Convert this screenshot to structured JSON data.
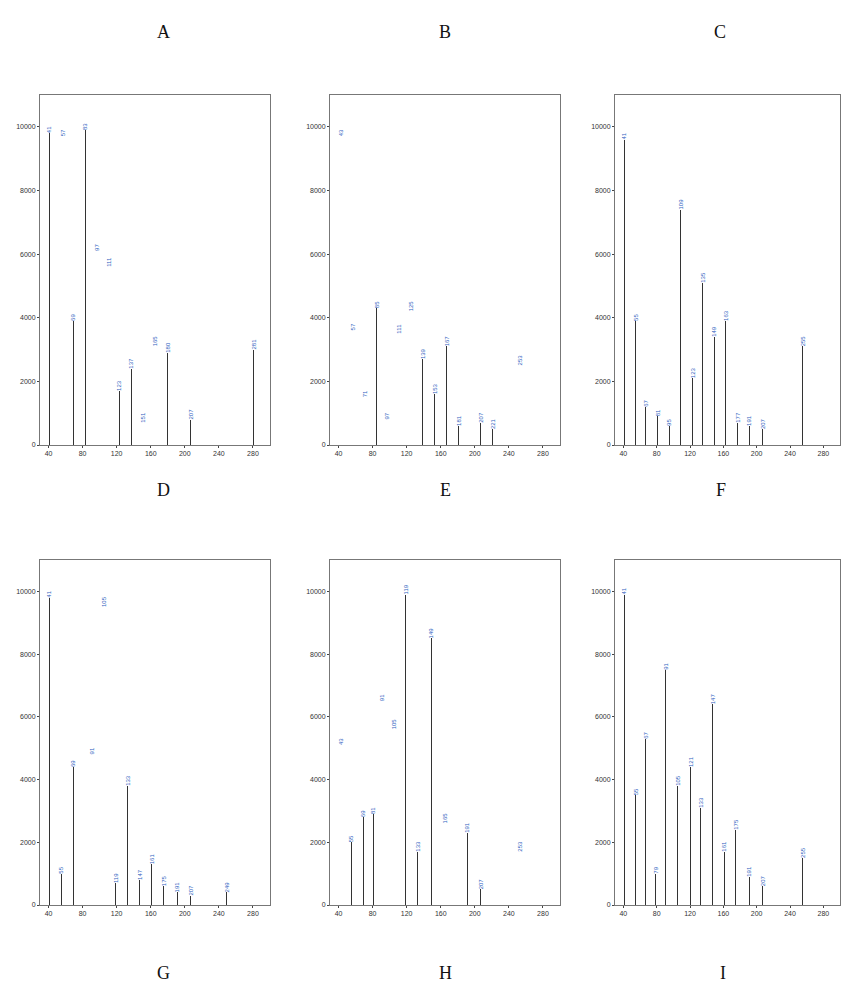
{
  "chart_data": [
    {
      "type": "bar",
      "title": "A",
      "color": "#333333",
      "data_labels": true,
      "grid": false,
      "x": [
        41,
        57,
        69,
        83,
        97,
        111,
        123,
        137,
        151,
        165,
        180,
        207,
        281
      ],
      "values": [
        9800,
        9700,
        3900,
        9900,
        6100,
        5600,
        1700,
        2400,
        700,
        3100,
        2900,
        800,
        3000
      ],
      "xlim": [
        30,
        300
      ],
      "xticks": [
        40,
        80,
        120,
        160,
        200,
        240,
        280
      ],
      "ylim": [
        0,
        11000
      ],
      "yticks": [
        0,
        2000,
        4000,
        6000,
        8000,
        10000
      ]
    },
    {
      "type": "bar",
      "title": "B",
      "color": "#333333",
      "data_labels": true,
      "grid": false,
      "x": [
        43,
        57,
        71,
        85,
        97,
        111,
        125,
        139,
        153,
        167,
        181,
        207,
        221,
        253
      ],
      "values": [
        9700,
        3600,
        1500,
        4300,
        800,
        3500,
        4200,
        2700,
        1600,
        3100,
        600,
        700,
        500,
        2500
      ],
      "xlim": [
        30,
        300
      ],
      "xticks": [
        40,
        80,
        120,
        160,
        200,
        240,
        280
      ],
      "ylim": [
        0,
        11000
      ],
      "yticks": [
        0,
        2000,
        4000,
        6000,
        8000,
        10000
      ]
    },
    {
      "type": "bar",
      "title": "C",
      "color": "#333333",
      "data_labels": true,
      "grid": false,
      "x": [
        41,
        55,
        67,
        81,
        95,
        109,
        123,
        135,
        149,
        163,
        177,
        191,
        207,
        255
      ],
      "values": [
        9600,
        3900,
        1200,
        900,
        600,
        7400,
        2100,
        5100,
        3400,
        3900,
        700,
        600,
        500,
        3100
      ],
      "xlim": [
        30,
        300
      ],
      "xticks": [
        40,
        80,
        120,
        160,
        200,
        240,
        280
      ],
      "ylim": [
        0,
        11000
      ],
      "yticks": [
        0,
        2000,
        4000,
        6000,
        8000,
        10000
      ]
    },
    {
      "type": "bar",
      "title": "D",
      "color": "#333333",
      "data_labels": true,
      "grid": false,
      "x": [
        41,
        55,
        69,
        91,
        105,
        119,
        133,
        147,
        161,
        175,
        191,
        207,
        249
      ],
      "values": [
        9800,
        1000,
        4400,
        4800,
        9500,
        700,
        3800,
        800,
        1300,
        600,
        400,
        300,
        400
      ],
      "xlim": [
        30,
        300
      ],
      "xticks": [
        40,
        80,
        120,
        160,
        200,
        240,
        280
      ],
      "ylim": [
        0,
        11000
      ],
      "yticks": [
        0,
        2000,
        4000,
        6000,
        8000,
        10000
      ]
    },
    {
      "type": "bar",
      "title": "E",
      "color": "#333333",
      "data_labels": true,
      "grid": false,
      "x": [
        43,
        55,
        69,
        81,
        91,
        105,
        119,
        133,
        149,
        165,
        191,
        207,
        253
      ],
      "values": [
        5100,
        2000,
        2800,
        2900,
        6500,
        5600,
        9900,
        1700,
        8500,
        2600,
        2300,
        500,
        1700
      ],
      "xlim": [
        30,
        300
      ],
      "xticks": [
        40,
        80,
        120,
        160,
        200,
        240,
        280
      ],
      "ylim": [
        0,
        11000
      ],
      "yticks": [
        0,
        2000,
        4000,
        6000,
        8000,
        10000
      ]
    },
    {
      "type": "bar",
      "title": "F",
      "color": "#333333",
      "data_labels": true,
      "grid": false,
      "x": [
        41,
        55,
        67,
        79,
        91,
        105,
        121,
        133,
        147,
        161,
        175,
        191,
        207,
        255
      ],
      "values": [
        9900,
        3500,
        5300,
        1000,
        7500,
        3800,
        4400,
        3100,
        6400,
        1700,
        2400,
        900,
        600,
        1500
      ],
      "xlim": [
        30,
        300
      ],
      "xticks": [
        40,
        80,
        120,
        160,
        200,
        240,
        280
      ],
      "ylim": [
        0,
        11000
      ],
      "yticks": [
        0,
        2000,
        4000,
        6000,
        8000,
        10000
      ]
    }
  ],
  "captions": [
    "G",
    "H",
    "I"
  ]
}
